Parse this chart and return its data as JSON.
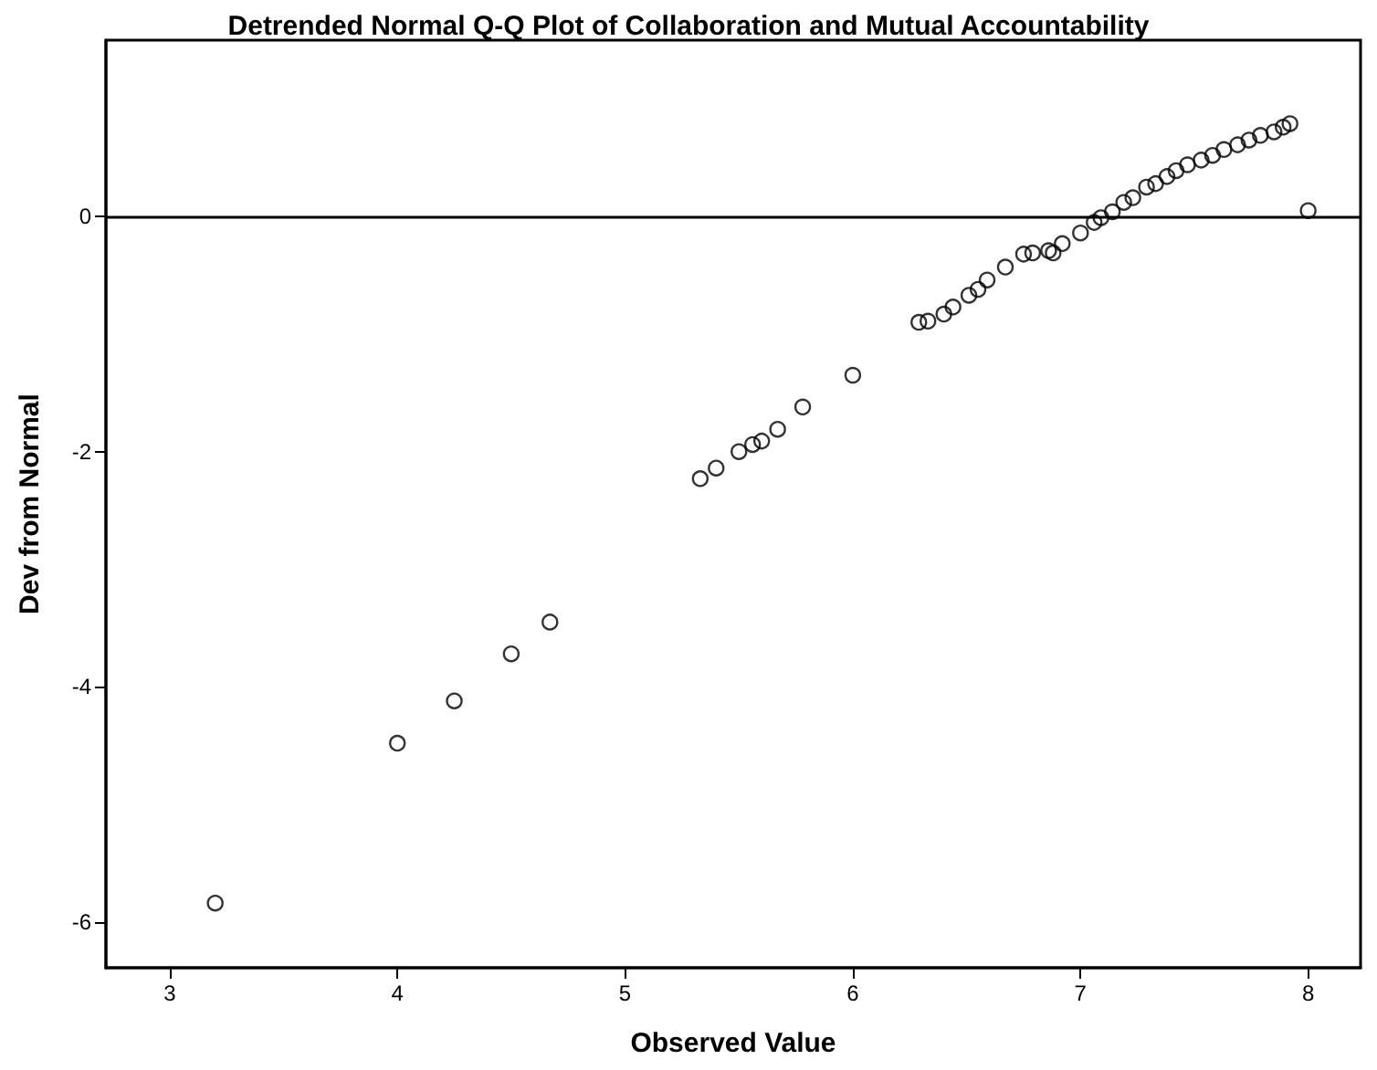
{
  "chart_data": {
    "type": "scatter",
    "title": "Detrended Normal Q-Q Plot of Collaboration and Mutual Accountability",
    "xlabel": "Observed Value",
    "ylabel": "Dev from Normal",
    "x": [
      3.2,
      4.0,
      4.25,
      4.5,
      4.67,
      5.33,
      5.4,
      5.5,
      5.56,
      5.6,
      5.67,
      5.78,
      6.0,
      6.29,
      6.33,
      6.4,
      6.44,
      6.51,
      6.55,
      6.59,
      6.67,
      6.75,
      6.79,
      6.86,
      6.88,
      6.92,
      7.0,
      7.06,
      7.09,
      7.14,
      7.19,
      7.23,
      7.29,
      7.33,
      7.38,
      7.42,
      7.47,
      7.53,
      7.58,
      7.63,
      7.69,
      7.74,
      7.79,
      7.85,
      7.89,
      7.92,
      8.0
    ],
    "series": [
      {
        "color": "#000000",
        "values": [
          -5.84,
          -4.48,
          -4.12,
          -3.72,
          -3.45,
          -2.23,
          -2.14,
          -2.0,
          -1.94,
          -1.91,
          -1.81,
          -1.62,
          -1.35,
          -0.9,
          -0.89,
          -0.83,
          -0.77,
          -0.67,
          -0.62,
          -0.54,
          -0.43,
          -0.32,
          -0.31,
          -0.29,
          -0.31,
          -0.23,
          -0.14,
          -0.05,
          -0.01,
          0.04,
          0.12,
          0.16,
          0.25,
          0.28,
          0.34,
          0.39,
          0.44,
          0.48,
          0.52,
          0.57,
          0.61,
          0.65,
          0.69,
          0.72,
          0.76,
          0.79,
          0.05
        ]
      }
    ],
    "xlim": [
      2.72,
      8.23
    ],
    "xticks": [
      3,
      4,
      5,
      6,
      7,
      8
    ],
    "ylim": [
      -6.39,
      1.5
    ],
    "yticks": [
      -6,
      -4,
      -2,
      0
    ],
    "ref_lines": [
      {
        "axis": "y",
        "value": 0,
        "color": "#000000"
      }
    ],
    "marker": "circle",
    "grid": false
  }
}
